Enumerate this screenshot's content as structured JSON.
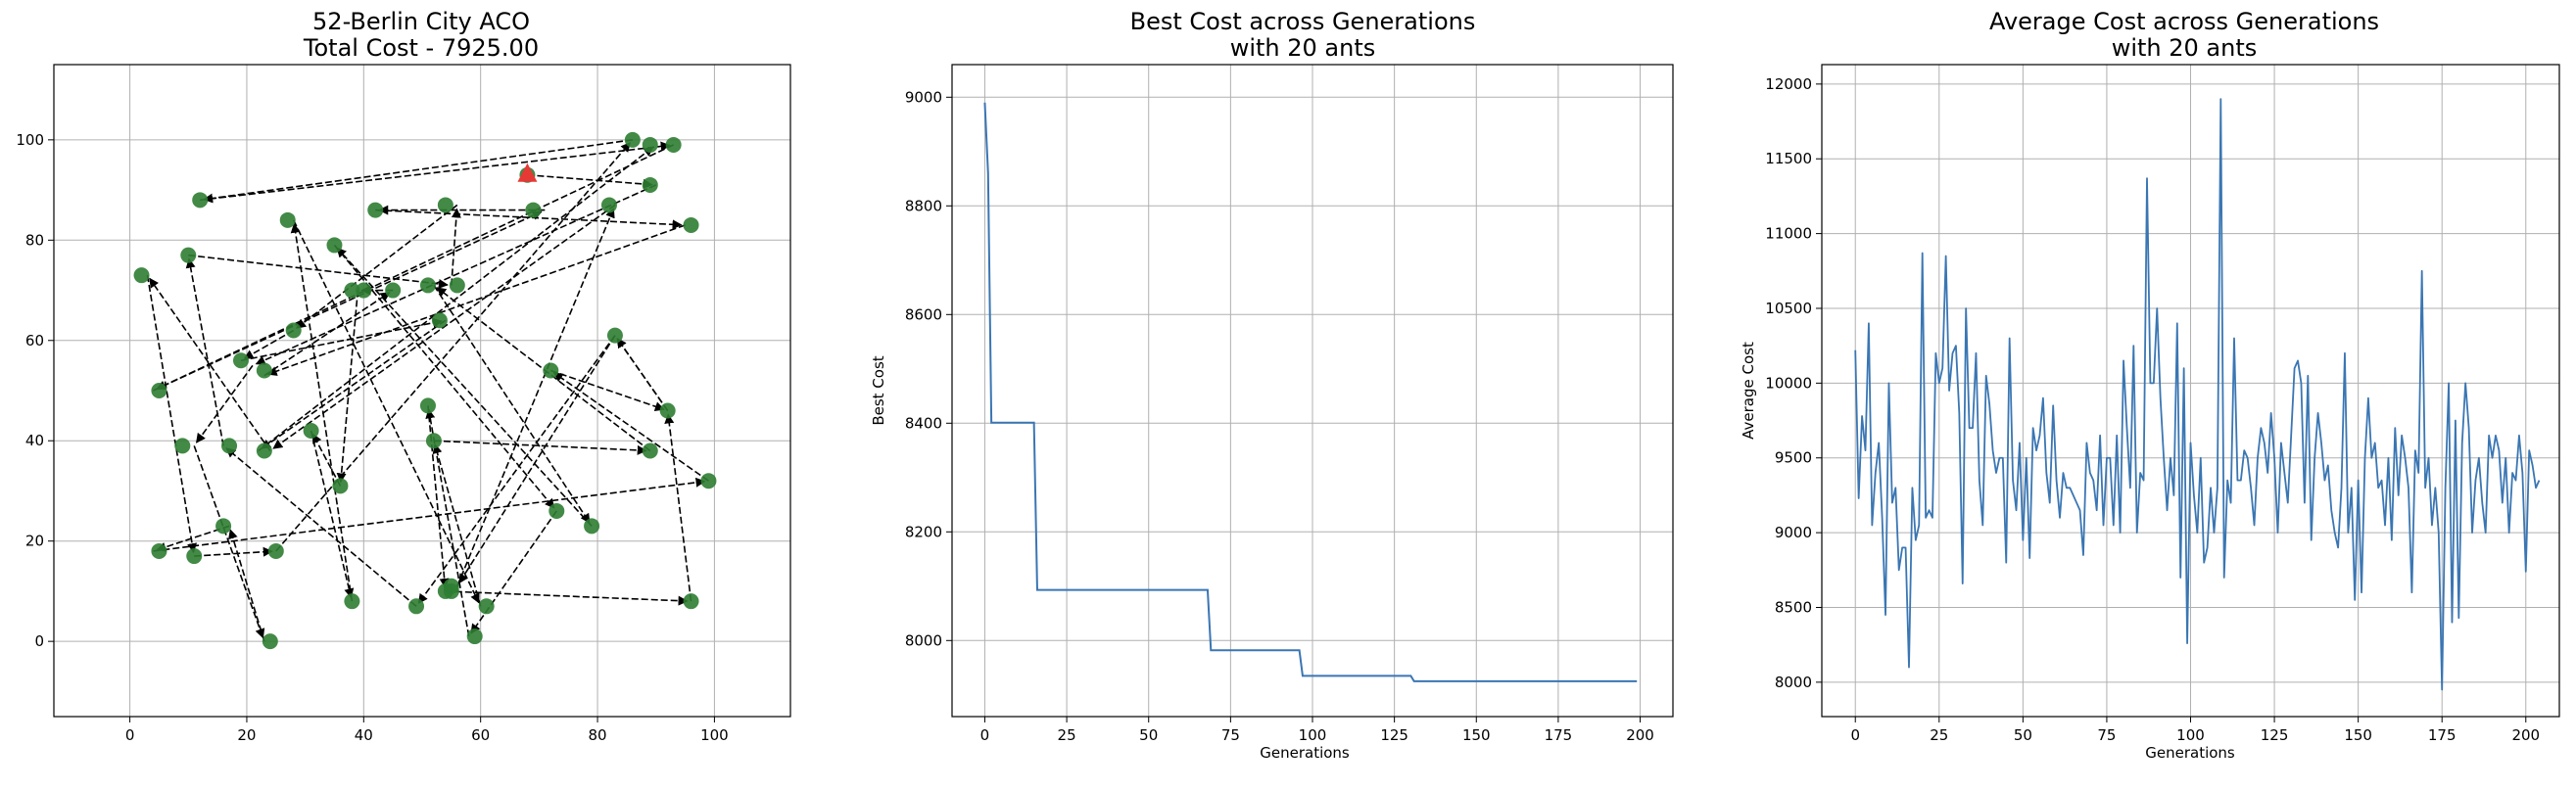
{
  "chart_data": [
    {
      "type": "scatter",
      "title": "52-Berlin City ACO",
      "subtitle": "Total Cost - 7925.00",
      "xlabel": "",
      "ylabel": "",
      "xlim": [
        -13,
        113
      ],
      "ylim": [
        -15,
        115
      ],
      "xticks": [
        0,
        20,
        40,
        60,
        80,
        100
      ],
      "yticks": [
        0,
        20,
        40,
        60,
        80,
        100
      ],
      "grid": true,
      "city_color": "#2e7d32",
      "start_color": "#e53935",
      "arrow_color": "#000000",
      "start": [
        68,
        93
      ],
      "cities": [
        [
          68,
          93
        ],
        [
          54,
          87
        ],
        [
          69,
          86
        ],
        [
          42,
          86
        ],
        [
          12,
          88
        ],
        [
          27,
          84
        ],
        [
          35,
          79
        ],
        [
          10,
          77
        ],
        [
          2,
          73
        ],
        [
          38,
          70
        ],
        [
          45,
          70
        ],
        [
          51,
          71
        ],
        [
          56,
          71
        ],
        [
          40,
          70
        ],
        [
          53,
          64
        ],
        [
          28,
          62
        ],
        [
          19,
          56
        ],
        [
          23,
          54
        ],
        [
          5,
          50
        ],
        [
          9,
          39
        ],
        [
          17,
          39
        ],
        [
          23,
          38
        ],
        [
          31,
          42
        ],
        [
          36,
          31
        ],
        [
          51,
          47
        ],
        [
          52,
          40
        ],
        [
          38,
          8
        ],
        [
          24,
          0
        ],
        [
          16,
          23
        ],
        [
          11,
          17
        ],
        [
          5,
          18
        ],
        [
          25,
          18
        ],
        [
          49,
          7
        ],
        [
          54,
          10
        ],
        [
          55,
          11
        ],
        [
          61,
          7
        ],
        [
          59,
          1
        ],
        [
          73,
          26
        ],
        [
          79,
          23
        ],
        [
          72,
          54
        ],
        [
          83,
          61
        ],
        [
          92,
          46
        ],
        [
          89,
          38
        ],
        [
          99,
          32
        ],
        [
          96,
          8
        ],
        [
          96,
          83
        ],
        [
          89,
          91
        ],
        [
          82,
          87
        ],
        [
          86,
          100
        ],
        [
          89,
          99
        ],
        [
          93,
          99
        ],
        [
          55,
          10
        ]
      ],
      "route": [
        [
          68,
          93
        ],
        [
          90,
          91
        ],
        [
          21,
          55
        ],
        [
          11,
          39
        ],
        [
          23,
          0
        ],
        [
          17,
          23
        ],
        [
          4,
          18
        ],
        [
          99,
          32
        ],
        [
          72,
          54
        ],
        [
          92,
          46
        ],
        [
          83,
          61
        ],
        [
          56,
          11
        ],
        [
          83,
          87
        ],
        [
          24,
          38
        ],
        [
          3,
          73
        ],
        [
          11,
          17
        ],
        [
          25,
          18
        ],
        [
          86,
          100
        ],
        [
          12,
          88
        ],
        [
          93,
          99
        ],
        [
          4,
          50
        ],
        [
          71,
          86
        ],
        [
          42,
          86
        ],
        [
          95,
          83
        ],
        [
          23,
          53
        ],
        [
          45,
          70
        ],
        [
          39,
          70
        ],
        [
          36,
          31
        ],
        [
          31,
          42
        ],
        [
          38,
          8
        ],
        [
          28,
          84
        ],
        [
          60,
          7
        ],
        [
          52,
          40
        ],
        [
          89,
          38
        ],
        [
          52,
          71
        ],
        [
          79,
          23
        ],
        [
          35,
          79
        ],
        [
          73,
          26
        ],
        [
          58,
          1
        ],
        [
          51,
          47
        ],
        [
          54,
          10
        ],
        [
          96,
          8
        ],
        [
          92,
          46
        ],
        [
          83,
          61
        ],
        [
          49,
          7
        ],
        [
          16,
          39
        ],
        [
          10,
          77
        ],
        [
          55,
          71
        ],
        [
          56,
          87
        ],
        [
          28,
          62
        ],
        [
          19,
          56
        ],
        [
          54,
          64
        ],
        [
          22,
          38
        ],
        [
          90,
          99
        ]
      ]
    },
    {
      "type": "line",
      "title": "Best Cost across Generations",
      "subtitle": "with 20 ants",
      "xlabel": "Generations",
      "ylabel": "Best Cost",
      "xlim": [
        -10,
        210
      ],
      "ylim": [
        7860,
        9060
      ],
      "xticks": [
        0,
        25,
        50,
        75,
        100,
        125,
        150,
        175,
        200
      ],
      "yticks": [
        8000,
        8200,
        8400,
        8600,
        8800,
        9000
      ],
      "grid": true,
      "color": "#3a76b3",
      "points": [
        [
          0,
          8990
        ],
        [
          1,
          8860
        ],
        [
          2,
          8401
        ],
        [
          15,
          8401
        ],
        [
          16,
          8093
        ],
        [
          68,
          8093
        ],
        [
          69,
          7982
        ],
        [
          96,
          7982
        ],
        [
          97,
          7935
        ],
        [
          130,
          7935
        ],
        [
          131,
          7925
        ],
        [
          199,
          7925
        ]
      ]
    },
    {
      "type": "line",
      "title": "Average Cost across Generations",
      "subtitle": "with 20 ants",
      "xlabel": "Generations",
      "ylabel": "Average Cost",
      "xlim": [
        -10,
        210
      ],
      "ylim": [
        7770,
        12130
      ],
      "xticks": [
        0,
        25,
        50,
        75,
        100,
        125,
        150,
        175,
        200
      ],
      "yticks": [
        8000,
        8500,
        9000,
        9500,
        10000,
        10500,
        11000,
        11500,
        12000
      ],
      "grid": true,
      "color": "#3a76b3",
      "values": [
        10220,
        9230,
        9780,
        9550,
        10400,
        9050,
        9400,
        9600,
        9100,
        8450,
        10000,
        9200,
        9300,
        8750,
        8900,
        8900,
        8100,
        9300,
        8950,
        9050,
        10870,
        9100,
        9150,
        9100,
        10200,
        10000,
        10100,
        10850,
        9950,
        10200,
        10250,
        9800,
        8660,
        10500,
        9700,
        9700,
        10200,
        9350,
        9050,
        10050,
        9860,
        9550,
        9400,
        9500,
        9500,
        8800,
        10300,
        9350,
        9150,
        9600,
        8950,
        9500,
        8830,
        9700,
        9550,
        9650,
        9900,
        9400,
        9200,
        9850,
        9350,
        9100,
        9400,
        9300,
        9300,
        9250,
        9200,
        9150,
        8850,
        9600,
        9400,
        9350,
        9150,
        9650,
        9050,
        9500,
        9500,
        9050,
        9650,
        9000,
        10150,
        9700,
        9300,
        10250,
        9000,
        9400,
        9350,
        11370,
        10000,
        10000,
        10500,
        9900,
        9500,
        9150,
        9500,
        9250,
        10400,
        8700,
        10100,
        8260,
        9600,
        9250,
        9000,
        9500,
        8800,
        8900,
        9300,
        9000,
        9300,
        11900,
        8700,
        9350,
        9200,
        10300,
        9350,
        9350,
        9550,
        9500,
        9300,
        9050,
        9500,
        9700,
        9600,
        9400,
        9800,
        9500,
        9000,
        9600,
        9400,
        9200,
        9650,
        10100,
        10150,
        10000,
        9200,
        10050,
        8950,
        9500,
        9800,
        9600,
        9350,
        9450,
        9150,
        9000,
        8900,
        9300,
        10200,
        9000,
        9300,
        8550,
        9350,
        8600,
        9500,
        9900,
        9500,
        9600,
        9300,
        9350,
        9050,
        9500,
        8950,
        9700,
        9250,
        9650,
        9500,
        9300,
        8600,
        9550,
        9400,
        10750,
        9300,
        9500,
        9050,
        9300,
        9000,
        7950,
        9300,
        10000,
        8400,
        9750,
        8430,
        9600,
        10000,
        9700,
        9000,
        9350,
        9500,
        9200,
        9000,
        9650,
        9500,
        9650,
        9550,
        9200,
        9500,
        9000,
        9400,
        9350,
        9650,
        9400,
        8740,
        9550,
        9450,
        9300,
        9350
      ]
    }
  ]
}
